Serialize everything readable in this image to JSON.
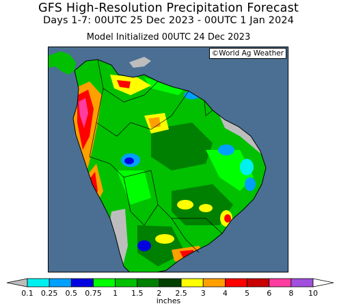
{
  "header": {
    "title": "GFS High-Resolution Precipitation Forecast",
    "period": "Days 1-7: 00UTC 25 Dec 2023 - 00UTC 1 Jan 2024",
    "initialized": "Model Initialized 00UTC 24 Dec 2023"
  },
  "map": {
    "credit": "©World Ag Weather",
    "region": "South America",
    "colors": {
      "ocean": "#4a6f93",
      "land_no_precip": "#bdbdbd",
      "border": "#000000"
    }
  },
  "legend": {
    "units": "inches",
    "levels": [
      "0.1",
      "0.25",
      "0.5",
      "0.75",
      "1",
      "1.5",
      "2",
      "2.5",
      "3",
      "4",
      "5",
      "6",
      "8",
      "10"
    ],
    "colors": [
      "#bdbdbd",
      "#00f0f0",
      "#00a0ff",
      "#0000e0",
      "#00ff00",
      "#00c000",
      "#008000",
      "#004000",
      "#ffff00",
      "#ffa000",
      "#ff0000",
      "#c80000",
      "#ff3ca0",
      "#a050dc",
      "#ffffff"
    ]
  }
}
